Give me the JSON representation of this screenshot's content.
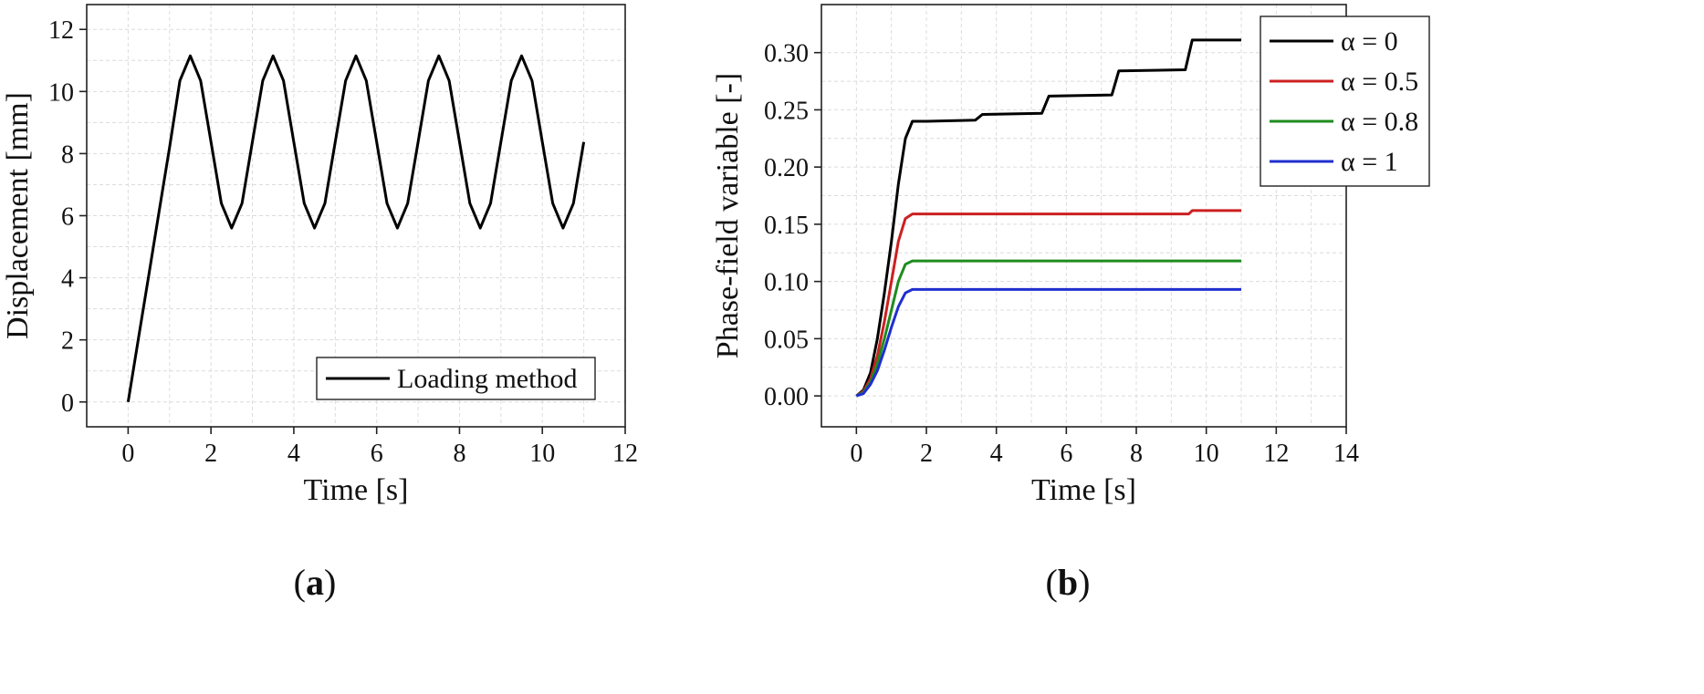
{
  "chart_data": [
    {
      "type": "line",
      "panel_label": "a",
      "xlabel": "Time [s]",
      "ylabel": "Displacement [mm]",
      "xlim": [
        -1,
        12
      ],
      "ylim": [
        -0.8,
        12.8
      ],
      "xticks": [
        0,
        2,
        4,
        6,
        8,
        10,
        12
      ],
      "yticks": [
        0,
        2,
        4,
        6,
        8,
        10,
        12
      ],
      "grid": true,
      "legend_position": "bottom-right",
      "series": [
        {
          "name": "Loading method",
          "color": "#000000",
          "x": [
            0,
            0.25,
            0.5,
            0.75,
            1.0,
            1.25,
            1.5,
            1.75,
            2.0,
            2.25,
            2.5,
            2.75,
            3.0,
            3.25,
            3.5,
            3.75,
            4.0,
            4.25,
            4.5,
            4.75,
            5.0,
            5.25,
            5.5,
            5.75,
            6.0,
            6.25,
            6.5,
            6.75,
            7.0,
            7.25,
            7.5,
            7.75,
            8.0,
            8.25,
            8.5,
            8.75,
            9.0,
            9.25,
            9.5,
            9.75,
            10.0,
            10.25,
            10.5,
            10.75,
            11.0
          ],
          "values": [
            0,
            2.05,
            4.1,
            6.15,
            8.2,
            10.35,
            11.15,
            10.35,
            8.37,
            6.4,
            5.6,
            6.4,
            8.37,
            10.35,
            11.15,
            10.35,
            8.37,
            6.4,
            5.6,
            6.4,
            8.37,
            10.35,
            11.15,
            10.35,
            8.37,
            6.4,
            5.6,
            6.4,
            8.37,
            10.35,
            11.15,
            10.35,
            8.37,
            6.4,
            5.6,
            6.4,
            8.37,
            10.35,
            11.15,
            10.35,
            8.37,
            6.4,
            5.6,
            6.4,
            8.37
          ]
        }
      ]
    },
    {
      "type": "line",
      "panel_label": "b",
      "xlabel": "Time [s]",
      "ylabel": "Phase-field variable [-]",
      "xlim": [
        -1,
        14
      ],
      "ylim": [
        -0.027,
        0.342
      ],
      "xticks": [
        0,
        2,
        4,
        6,
        8,
        10,
        12,
        14
      ],
      "yticks": [
        "0.00",
        "0.05",
        "0.10",
        "0.15",
        "0.20",
        "0.25",
        "0.30"
      ],
      "grid": true,
      "legend_position": "top-right",
      "series": [
        {
          "name": "α = 0",
          "color": "#000000",
          "x": [
            0,
            0.2,
            0.4,
            0.6,
            0.8,
            1.0,
            1.2,
            1.4,
            1.6,
            2.0,
            3.4,
            3.6,
            5.3,
            5.5,
            7.3,
            7.5,
            9.4,
            9.6,
            11.0
          ],
          "values": [
            0,
            0.005,
            0.02,
            0.05,
            0.09,
            0.135,
            0.185,
            0.225,
            0.24,
            0.24,
            0.241,
            0.246,
            0.247,
            0.262,
            0.263,
            0.284,
            0.285,
            0.311,
            0.311
          ]
        },
        {
          "name": "α = 0.5",
          "color": "#cc2020",
          "x": [
            0,
            0.2,
            0.4,
            0.6,
            0.8,
            1.0,
            1.2,
            1.4,
            1.6,
            2.0,
            9.5,
            9.6,
            11.0
          ],
          "values": [
            0,
            0.004,
            0.015,
            0.035,
            0.065,
            0.1,
            0.135,
            0.155,
            0.159,
            0.159,
            0.159,
            0.162,
            0.162
          ]
        },
        {
          "name": "α = 0.8",
          "color": "#1e8c1e",
          "x": [
            0,
            0.2,
            0.4,
            0.6,
            0.8,
            1.0,
            1.2,
            1.4,
            1.6,
            2.0,
            11.0
          ],
          "values": [
            0,
            0.003,
            0.012,
            0.028,
            0.05,
            0.075,
            0.1,
            0.115,
            0.118,
            0.118,
            0.118
          ]
        },
        {
          "name": "α = 1",
          "color": "#1f2fcf",
          "x": [
            0,
            0.2,
            0.4,
            0.6,
            0.8,
            1.0,
            1.2,
            1.4,
            1.6,
            2.0,
            11.0
          ],
          "values": [
            0,
            0.002,
            0.01,
            0.022,
            0.04,
            0.06,
            0.078,
            0.09,
            0.093,
            0.093,
            0.093
          ]
        }
      ]
    }
  ]
}
